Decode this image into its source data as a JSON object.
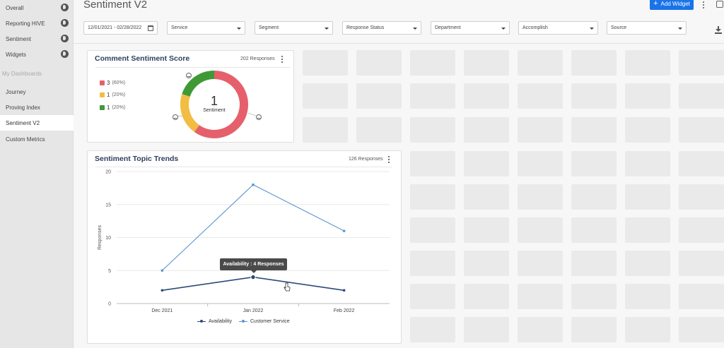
{
  "sidebar": {
    "items": [
      {
        "label": "Overall",
        "icon": "globe-icon"
      },
      {
        "label": "Reporting HIVE",
        "icon": "globe-icon"
      },
      {
        "label": "Sentiment",
        "icon": "globe-icon"
      },
      {
        "label": "Widgets",
        "icon": "globe-icon"
      }
    ],
    "section_label": "My Dashboards",
    "dashboards": [
      {
        "label": "Journey"
      },
      {
        "label": "Proving Index"
      },
      {
        "label": "Sentiment V2",
        "active": true
      },
      {
        "label": "Custom Metrics"
      }
    ]
  },
  "header": {
    "title": "Sentiment V2",
    "add_widget_label": "Add Widget"
  },
  "filters": {
    "date_range": "12/01/2021 - 02/28/2022",
    "dropdowns": [
      "Service",
      "Segment",
      "Response Status",
      "Department",
      "Accomplish",
      "Source"
    ]
  },
  "sentiment_card": {
    "title": "Comment Sentiment Score",
    "responses": "202 Responses",
    "center_value": "1",
    "center_label": "Sentiment",
    "legend": [
      {
        "value": "3",
        "pct": "(60%)",
        "color": "#e5606b"
      },
      {
        "value": "1",
        "pct": "(20%)",
        "color": "#f2bd42"
      },
      {
        "value": "1",
        "pct": "(20%)",
        "color": "#3f9a36"
      }
    ]
  },
  "trends_card": {
    "title": "Sentiment Topic Trends",
    "responses": "126 Responses",
    "tooltip": "Availability : 4 Responses"
  },
  "chart_data": {
    "type": "line",
    "x": [
      "Dec 2021",
      "Jan 2022",
      "Feb 2022"
    ],
    "ylabel": "Responses",
    "ylim": [
      0,
      20
    ],
    "yticks": [
      0,
      5,
      10,
      15,
      20
    ],
    "grid": true,
    "legend": "bottom",
    "series": [
      {
        "name": "Availability",
        "values": [
          2,
          4,
          2
        ],
        "color": "#2c4a7a"
      },
      {
        "name": "Customer Service",
        "values": [
          5,
          18,
          11
        ],
        "color": "#5b95d1"
      }
    ]
  }
}
